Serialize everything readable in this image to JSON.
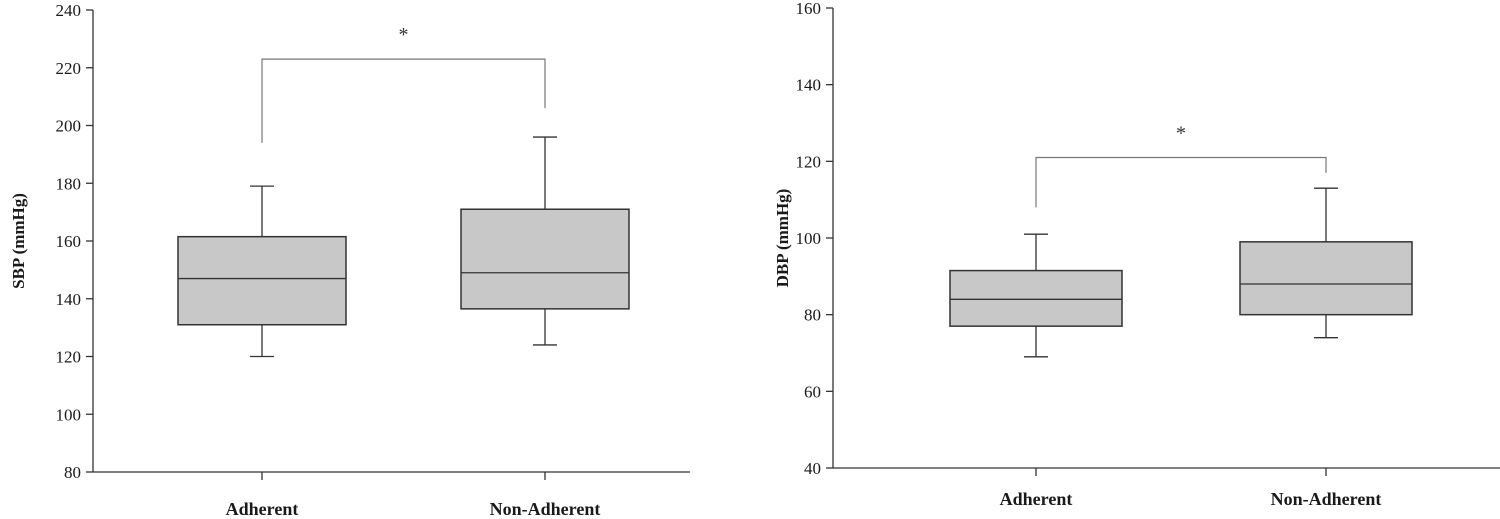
{
  "chart_data": [
    {
      "type": "box",
      "ylabel": "SBP (mmHg)",
      "ylim": [
        80,
        240
      ],
      "yticks": [
        80,
        100,
        120,
        140,
        160,
        180,
        200,
        220,
        240
      ],
      "categories": [
        "Adherent",
        "Non-Adherent"
      ],
      "boxes": [
        {
          "min": 120,
          "q1": 131,
          "median": 147,
          "q3": 161.5,
          "max": 179
        },
        {
          "min": 124,
          "q1": 136.5,
          "median": 149,
          "q3": 171,
          "max": 196
        }
      ],
      "significance": {
        "label": "*",
        "between": [
          0,
          1
        ],
        "level": 223,
        "left_drop_to": 194,
        "right_drop_to": 206
      },
      "box_color": "#c8c8c8"
    },
    {
      "type": "box",
      "ylabel": "DBP (mmHg)",
      "ylim": [
        40,
        160
      ],
      "yticks": [
        40,
        60,
        80,
        100,
        120,
        140,
        160
      ],
      "categories": [
        "Adherent",
        "Non-Adherent"
      ],
      "boxes": [
        {
          "min": 69,
          "q1": 77,
          "median": 84,
          "q3": 91.5,
          "max": 101
        },
        {
          "min": 74,
          "q1": 80,
          "median": 88,
          "q3": 99,
          "max": 113
        }
      ],
      "significance": {
        "label": "*",
        "between": [
          0,
          1
        ],
        "level": 121,
        "left_drop_to": 108,
        "right_drop_to": 117
      },
      "box_color": "#c8c8c8"
    }
  ]
}
